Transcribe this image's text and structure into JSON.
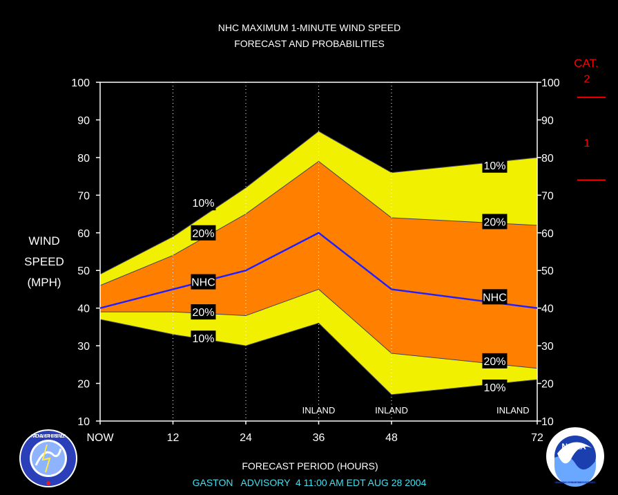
{
  "chart_data": {
    "type": "area",
    "title": "NHC MAXIMUM 1-MINUTE WIND SPEED",
    "subtitle": "FORECAST AND PROBABILITIES",
    "ylabel_lines": [
      "WIND",
      "SPEED",
      "(MPH)"
    ],
    "xlabel": "FORECAST PERIOD (HOURS)",
    "footer": "GASTON   ADVISORY  4 11:00 AM EDT AUG 28 2004",
    "ylim": [
      10,
      100
    ],
    "xlim": [
      0,
      72
    ],
    "y_ticks": [
      "10",
      "20",
      "30",
      "40",
      "50",
      "60",
      "70",
      "80",
      "90",
      "100"
    ],
    "x_ticks": [
      {
        "x": 0,
        "label": "NOW"
      },
      {
        "x": 12,
        "label": "12"
      },
      {
        "x": 24,
        "label": "24"
      },
      {
        "x": 36,
        "label": "36"
      },
      {
        "x": 48,
        "label": "48"
      },
      {
        "x": 72,
        "label": "72"
      }
    ],
    "x": [
      0,
      12,
      24,
      36,
      48,
      72
    ],
    "series": [
      {
        "name": "10%",
        "role": "upper-10",
        "values": [
          49,
          59,
          72,
          87,
          76,
          80
        ]
      },
      {
        "name": "20%",
        "role": "upper-20",
        "values": [
          46,
          54,
          65,
          79,
          64,
          62
        ]
      },
      {
        "name": "NHC",
        "role": "forecast",
        "values": [
          40,
          45,
          50,
          60,
          45,
          40
        ]
      },
      {
        "name": "20%",
        "role": "lower-20",
        "values": [
          39,
          39,
          38,
          45,
          28,
          24
        ]
      },
      {
        "name": "10%",
        "role": "lower-10",
        "values": [
          37,
          33,
          30,
          36,
          17,
          21
        ]
      }
    ],
    "series_labels": [
      {
        "text": "10%",
        "x": 17,
        "y": 68
      },
      {
        "text": "20%",
        "x": 17,
        "y": 60
      },
      {
        "text": "NHC",
        "x": 17,
        "y": 47
      },
      {
        "text": "20%",
        "x": 17,
        "y": 39
      },
      {
        "text": "10%",
        "x": 17,
        "y": 32
      },
      {
        "text": "10%",
        "x": 65,
        "y": 78
      },
      {
        "text": "20%",
        "x": 65,
        "y": 63
      },
      {
        "text": "NHC",
        "x": 65,
        "y": 43
      },
      {
        "text": "20%",
        "x": 65,
        "y": 26
      },
      {
        "text": "10%",
        "x": 65,
        "y": 19
      }
    ],
    "inland_labels": [
      {
        "x": 36,
        "text": "INLAND"
      },
      {
        "x": 48,
        "text": "INLAND"
      },
      {
        "x": 68,
        "text": "INLAND"
      }
    ],
    "dotted_verticals": [
      12,
      24,
      36,
      48
    ],
    "category": {
      "header": "CAT.",
      "labels": [
        {
          "text": "2",
          "y_mph": 101
        },
        {
          "text": "1",
          "y_mph": 84
        }
      ],
      "threshold_lines_mph": [
        96,
        74
      ]
    },
    "colors": {
      "outer_band": "#f0f000",
      "inner_band": "#ff8000",
      "forecast_line": "#2020ff",
      "category": "#ff0000",
      "footer": "#40e0f0",
      "text": "#ffffff",
      "background": "#000000"
    }
  },
  "logos": {
    "nws": "NATIONAL WEATHER SERVICE",
    "noaa": "NOAA",
    "noaa_ring": "NATIONAL OCEANIC AND ATMOSPHERIC ADMINISTRATION · U.S. DEPARTMENT OF COMMERCE"
  }
}
